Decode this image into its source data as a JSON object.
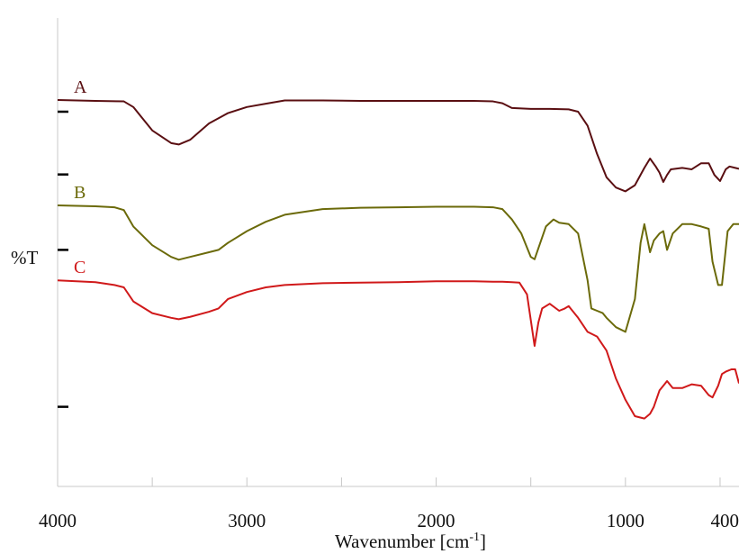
{
  "chart_data": {
    "type": "line",
    "title": "",
    "xlabel": "Wavenumber [cm",
    "xlabel_superscript": "-1",
    "xlabel_suffix": "]",
    "ylabel": "%T",
    "xlim": [
      4000,
      400
    ],
    "x_reversed": true,
    "y_relative_range": [
      0,
      1
    ],
    "x_tick_labels": [
      "4000",
      "3000",
      "2000",
      "1000",
      "400"
    ],
    "x_ticks": [
      4000,
      3000,
      2000,
      1000,
      400
    ],
    "grid": false,
    "legend": "inline labels at left",
    "series": [
      {
        "name": "A",
        "color": "#5a0f12",
        "x": [
          4000,
          3800,
          3650,
          3600,
          3500,
          3400,
          3360,
          3300,
          3200,
          3100,
          3000,
          2900,
          2800,
          2600,
          2400,
          2200,
          2000,
          1800,
          1700,
          1650,
          1600,
          1500,
          1400,
          1300,
          1250,
          1200,
          1150,
          1100,
          1050,
          1000,
          950,
          900,
          870,
          840,
          820,
          800,
          780,
          760,
          700,
          650,
          600,
          560,
          530,
          500,
          470,
          450,
          420,
          400
        ],
        "y": [
          0.825,
          0.823,
          0.822,
          0.81,
          0.76,
          0.733,
          0.73,
          0.74,
          0.775,
          0.797,
          0.81,
          0.817,
          0.824,
          0.824,
          0.823,
          0.823,
          0.823,
          0.823,
          0.822,
          0.818,
          0.808,
          0.806,
          0.806,
          0.805,
          0.8,
          0.77,
          0.71,
          0.66,
          0.638,
          0.63,
          0.643,
          0.68,
          0.7,
          0.683,
          0.67,
          0.65,
          0.665,
          0.677,
          0.68,
          0.677,
          0.69,
          0.69,
          0.665,
          0.652,
          0.677,
          0.683,
          0.68,
          0.678
        ]
      },
      {
        "name": "B",
        "color": "#6b6a0a",
        "x": [
          4000,
          3800,
          3700,
          3650,
          3600,
          3500,
          3400,
          3360,
          3300,
          3200,
          3150,
          3100,
          3000,
          2900,
          2800,
          2600,
          2400,
          2200,
          2000,
          1800,
          1700,
          1650,
          1600,
          1550,
          1500,
          1480,
          1450,
          1420,
          1380,
          1350,
          1300,
          1250,
          1200,
          1180,
          1150,
          1120,
          1100,
          1050,
          1000,
          950,
          920,
          900,
          870,
          850,
          820,
          800,
          780,
          750,
          700,
          650,
          600,
          560,
          540,
          510,
          490,
          460,
          430,
          400
        ],
        "y": [
          0.6,
          0.598,
          0.596,
          0.59,
          0.555,
          0.515,
          0.49,
          0.484,
          0.49,
          0.5,
          0.505,
          0.52,
          0.545,
          0.565,
          0.58,
          0.592,
          0.595,
          0.596,
          0.597,
          0.597,
          0.596,
          0.592,
          0.57,
          0.54,
          0.49,
          0.485,
          0.52,
          0.555,
          0.57,
          0.563,
          0.56,
          0.54,
          0.44,
          0.38,
          0.375,
          0.37,
          0.36,
          0.34,
          0.33,
          0.4,
          0.52,
          0.56,
          0.5,
          0.525,
          0.54,
          0.545,
          0.505,
          0.54,
          0.56,
          0.56,
          0.555,
          0.55,
          0.48,
          0.43,
          0.43,
          0.545,
          0.56,
          0.56
        ]
      },
      {
        "name": "C",
        "color": "#d0191a",
        "x": [
          4000,
          3800,
          3700,
          3650,
          3600,
          3500,
          3400,
          3360,
          3300,
          3200,
          3150,
          3100,
          3000,
          2900,
          2800,
          2600,
          2400,
          2200,
          2000,
          1800,
          1700,
          1650,
          1600,
          1560,
          1520,
          1480,
          1460,
          1440,
          1400,
          1350,
          1320,
          1300,
          1250,
          1200,
          1150,
          1100,
          1050,
          1000,
          950,
          900,
          870,
          850,
          820,
          800,
          780,
          750,
          700,
          650,
          600,
          560,
          540,
          510,
          490,
          470,
          440,
          420,
          400
        ],
        "y": [
          0.44,
          0.436,
          0.43,
          0.425,
          0.395,
          0.37,
          0.36,
          0.357,
          0.362,
          0.373,
          0.38,
          0.4,
          0.415,
          0.425,
          0.43,
          0.434,
          0.435,
          0.436,
          0.438,
          0.438,
          0.437,
          0.437,
          0.436,
          0.435,
          0.41,
          0.3,
          0.35,
          0.38,
          0.39,
          0.375,
          0.38,
          0.385,
          0.36,
          0.33,
          0.32,
          0.29,
          0.23,
          0.185,
          0.15,
          0.145,
          0.155,
          0.17,
          0.205,
          0.215,
          0.225,
          0.21,
          0.21,
          0.218,
          0.215,
          0.195,
          0.19,
          0.215,
          0.24,
          0.245,
          0.25,
          0.25,
          0.22
        ]
      }
    ]
  }
}
